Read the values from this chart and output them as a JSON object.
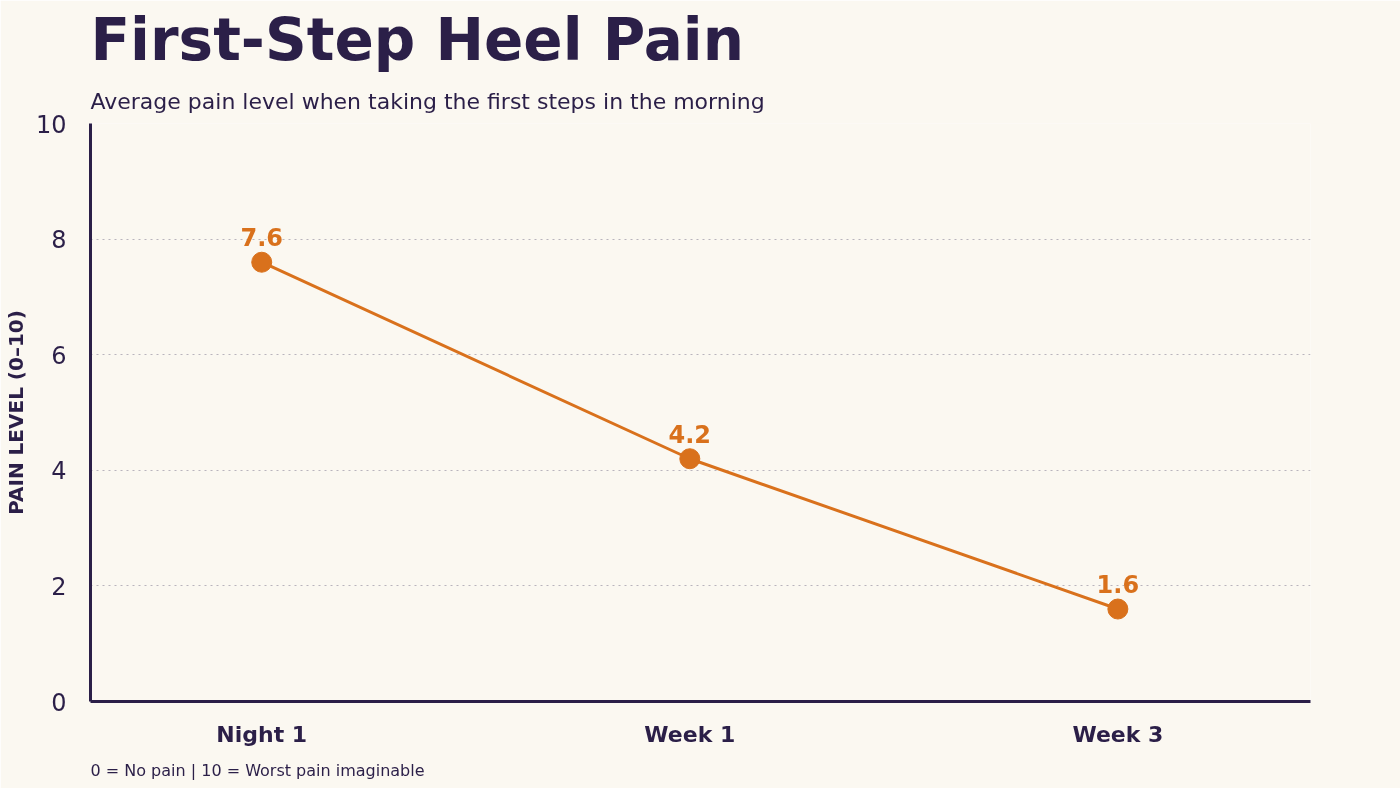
{
  "chart_data": {
    "type": "line",
    "title": "First-Step Heel Pain",
    "subtitle": "Average pain level when taking the first steps in the morning",
    "ylabel": "PAIN LEVEL (0–10)",
    "categories": [
      "Night 1",
      "Week 1",
      "Week 3"
    ],
    "series": [
      {
        "color": "#d9711c",
        "values": [
          7.6,
          4.2,
          1.6
        ]
      }
    ],
    "ylim": [
      0,
      10
    ],
    "yticks": [
      0,
      2,
      4,
      6,
      8,
      10
    ],
    "grid": "y",
    "marker": "circle",
    "line_style": "solid",
    "data_labels": true,
    "annotations": [
      "0 = No pain | 10 = Worst pain imaginable"
    ]
  }
}
